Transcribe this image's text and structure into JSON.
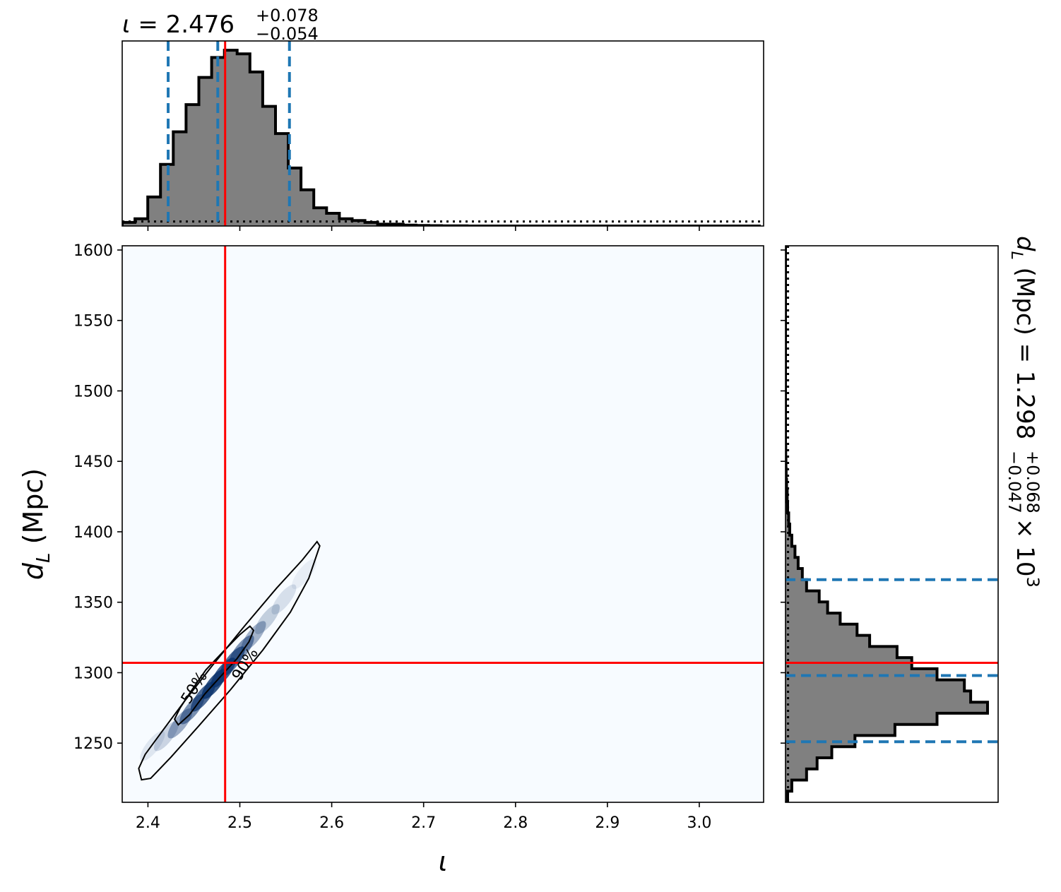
{
  "chart_data": {
    "type": "corner",
    "parameters": [
      "iota",
      "d_L"
    ],
    "truth": {
      "iota": 2.484,
      "d_L": 1307
    },
    "top_title": {
      "symbol": "ι",
      "median": "2.476",
      "plus": "+0.078",
      "minus": "−0.054"
    },
    "right_title": {
      "text": "d",
      "sub": "L",
      "unit": "(Mpc)",
      "median": "1.298",
      "plus": "+0.068",
      "minus": "−0.047",
      "scale": "× 10",
      "exp": "3"
    },
    "xlabel": {
      "symbol": "ι"
    },
    "ylabel": {
      "symbol": "d",
      "sub": "L",
      "unit": "(Mpc)"
    },
    "xlim": [
      2.372,
      3.07
    ],
    "ylim": [
      1208,
      1603
    ],
    "x_ticks": [
      "2.4",
      "2.5",
      "2.6",
      "2.7",
      "2.8",
      "2.9",
      "3.0"
    ],
    "y_ticks": [
      "1250",
      "1300",
      "1350",
      "1400",
      "1450",
      "1500",
      "1550",
      "1600"
    ],
    "iota_quantiles": [
      2.422,
      2.476,
      2.554
    ],
    "dL_quantiles": [
      1251,
      1298,
      1366
    ],
    "iota_hist": {
      "start": 2.372,
      "width": 0.0139,
      "counts": [
        0.02,
        0.04,
        0.16,
        0.34,
        0.52,
        0.67,
        0.82,
        0.93,
        0.97,
        0.95,
        0.85,
        0.66,
        0.51,
        0.32,
        0.2,
        0.1,
        0.07,
        0.04,
        0.03,
        0.02,
        0.01,
        0.01,
        0.005,
        0.003,
        0.002,
        0.001,
        0.001,
        0,
        0,
        0,
        0,
        0,
        0,
        0,
        0,
        0,
        0,
        0,
        0,
        0,
        0,
        0,
        0,
        0,
        0,
        0,
        0,
        0,
        0,
        0
      ],
      "prior_level": 0.025
    },
    "dL_hist": {
      "start": 1208,
      "width": 7.9,
      "counts": [
        0.01,
        0.03,
        0.1,
        0.15,
        0.22,
        0.33,
        0.52,
        0.72,
        0.96,
        0.88,
        0.85,
        0.72,
        0.6,
        0.53,
        0.4,
        0.34,
        0.26,
        0.2,
        0.16,
        0.1,
        0.08,
        0.06,
        0.045,
        0.03,
        0.02,
        0.015,
        0.01,
        0.008,
        0.005,
        0.003,
        0.002,
        0.001,
        0,
        0,
        0,
        0,
        0,
        0,
        0,
        0,
        0,
        0,
        0,
        0,
        0,
        0,
        0,
        0,
        0,
        0
      ],
      "prior_level": 0.012
    },
    "contours": [
      {
        "label": "50%",
        "points": [
          [
            2.433,
            1263
          ],
          [
            2.445,
            1270
          ],
          [
            2.462,
            1285
          ],
          [
            2.48,
            1298
          ],
          [
            2.497,
            1310
          ],
          [
            2.51,
            1322
          ],
          [
            2.515,
            1330
          ],
          [
            2.511,
            1333
          ],
          [
            2.5,
            1327
          ],
          [
            2.482,
            1315
          ],
          [
            2.463,
            1302
          ],
          [
            2.447,
            1287
          ],
          [
            2.435,
            1275
          ],
          [
            2.429,
            1267
          ]
        ]
      },
      {
        "label": "90%",
        "points": [
          [
            2.393,
            1224
          ],
          [
            2.403,
            1225
          ],
          [
            2.425,
            1240
          ],
          [
            2.455,
            1262
          ],
          [
            2.49,
            1288
          ],
          [
            2.525,
            1316
          ],
          [
            2.555,
            1343
          ],
          [
            2.575,
            1367
          ],
          [
            2.587,
            1390
          ],
          [
            2.584,
            1393
          ],
          [
            2.568,
            1380
          ],
          [
            2.54,
            1360
          ],
          [
            2.505,
            1333
          ],
          [
            2.47,
            1305
          ],
          [
            2.44,
            1280
          ],
          [
            2.415,
            1258
          ],
          [
            2.397,
            1242
          ],
          [
            2.39,
            1232
          ]
        ]
      }
    ],
    "heatmap": [
      {
        "cx": 2.405,
        "cy": 1248,
        "a": 0.12
      },
      {
        "cx": 2.42,
        "cy": 1255,
        "a": 0.22
      },
      {
        "cx": 2.435,
        "cy": 1264,
        "a": 0.45
      },
      {
        "cx": 2.448,
        "cy": 1274,
        "a": 0.62
      },
      {
        "cx": 2.46,
        "cy": 1283,
        "a": 0.85
      },
      {
        "cx": 2.472,
        "cy": 1292,
        "a": 0.95
      },
      {
        "cx": 2.482,
        "cy": 1300,
        "a": 0.9
      },
      {
        "cx": 2.492,
        "cy": 1308,
        "a": 0.8
      },
      {
        "cx": 2.502,
        "cy": 1316,
        "a": 0.6
      },
      {
        "cx": 2.515,
        "cy": 1326,
        "a": 0.42
      },
      {
        "cx": 2.53,
        "cy": 1338,
        "a": 0.26
      },
      {
        "cx": 2.548,
        "cy": 1352,
        "a": 0.16
      },
      {
        "cx": 2.57,
        "cy": 1370,
        "a": 0.08
      }
    ],
    "colors": {
      "truth": "#ff0000",
      "quantile": "#1f77b4",
      "hist_fill": "#808080",
      "heat_bg": "#f7fbff",
      "heat_high": "#08306b"
    }
  }
}
